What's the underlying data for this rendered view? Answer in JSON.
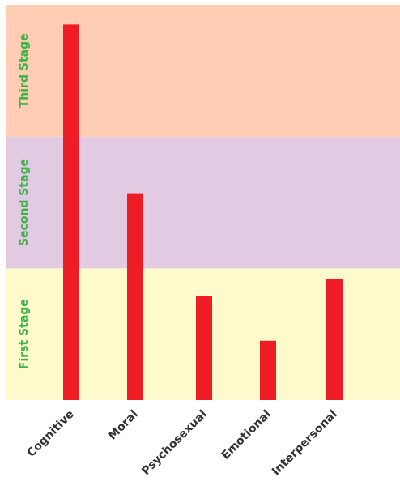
{
  "chart_data": {
    "type": "bar",
    "categories": [
      "Cognitive",
      "Moral",
      "Psychosexual",
      "Emotional",
      "Interpersonal"
    ],
    "values": [
      2.85,
      1.57,
      0.79,
      0.45,
      0.92
    ],
    "ylim": [
      0,
      3
    ],
    "bar_color": "#ee1c25",
    "label_color": "#3cb34a",
    "bands": [
      {
        "label": "First Stage",
        "from": 0,
        "to": 1,
        "color": "#fefacc"
      },
      {
        "label": "Second Stage",
        "from": 1,
        "to": 2,
        "color": "#e2cbe2"
      },
      {
        "label": "Third Stage",
        "from": 2,
        "to": 3,
        "color": "#fecdb4"
      }
    ]
  }
}
